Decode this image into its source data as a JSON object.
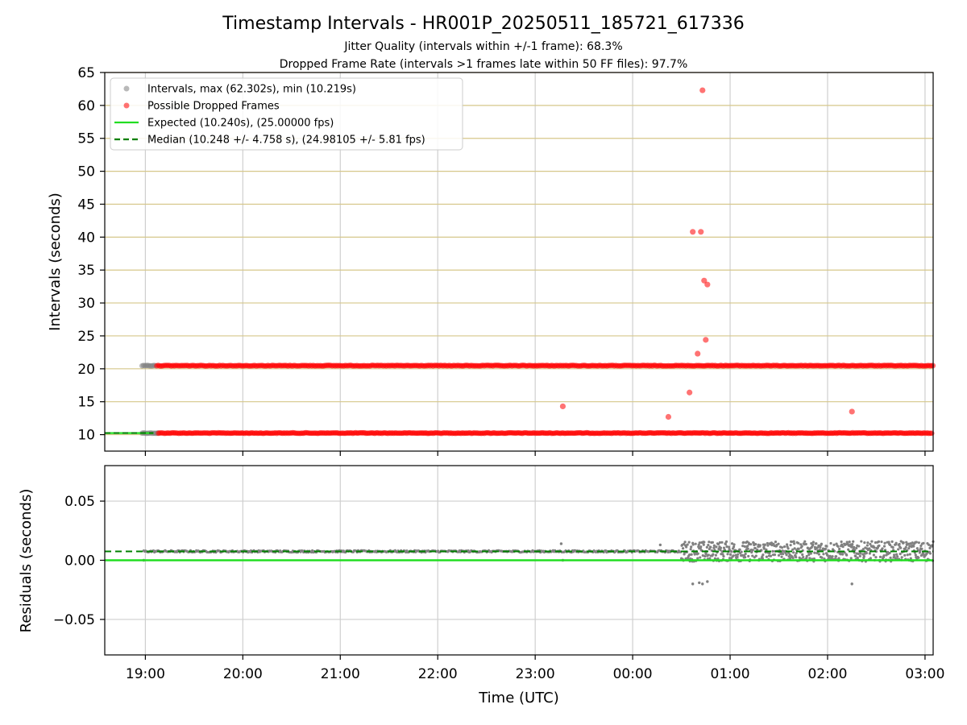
{
  "chart_data": [
    {
      "type": "scatter",
      "panel": "intervals",
      "title": "Timestamp Intervals - HR001P_20250511_185721_617336",
      "subtitle_lines": [
        "Jitter Quality (intervals within +/-1 frame): 68.3%",
        "Dropped Frame Rate (intervals >1 frames late within 50 FF files): 97.7%"
      ],
      "xlabel": "",
      "ylabel": "Intervals (seconds)",
      "ylim": [
        7.5,
        65
      ],
      "yticks": [
        10,
        15,
        20,
        25,
        30,
        35,
        40,
        45,
        50,
        55,
        60,
        65
      ],
      "xlim": [
        "18:35",
        "03:05"
      ],
      "grid": true,
      "legend_position": "top-left",
      "legend": [
        {
          "label": "Intervals, max (62.302s), min (10.219s)",
          "kind": "marker",
          "color": "#808080"
        },
        {
          "label": "Possible Dropped Frames",
          "kind": "marker",
          "color": "#ff0000"
        },
        {
          "label": "Expected (10.240s), (25.00000 fps)",
          "kind": "line",
          "color": "#22dd22"
        },
        {
          "label": "Median (10.248 +/- 4.758 s), (24.98105 +/- 5.81 fps)",
          "kind": "dashed",
          "color": "#008000"
        }
      ],
      "expected_interval": 10.24,
      "median_interval": 10.248,
      "series": [
        {
          "name": "Intervals, max (62.302s), min (10.219s)",
          "color": "#808080",
          "bands": [
            {
              "value": 10.24,
              "x_start": "18:58",
              "x_end": "19:08"
            },
            {
              "value": 20.48,
              "x_start": "18:58",
              "x_end": "19:07"
            }
          ]
        },
        {
          "name": "Possible Dropped Frames",
          "color": "#ff0000",
          "bands": [
            {
              "value": 10.24,
              "x_start": "19:08",
              "x_end": "03:05"
            },
            {
              "value": 20.48,
              "x_start": "19:07",
              "x_end": "03:05"
            }
          ],
          "points": [
            {
              "x": "23:17",
              "y": 14.3
            },
            {
              "x": "00:22",
              "y": 12.7
            },
            {
              "x": "00:35",
              "y": 16.4
            },
            {
              "x": "00:37",
              "y": 40.8
            },
            {
              "x": "00:40",
              "y": 22.3
            },
            {
              "x": "00:42",
              "y": 40.8
            },
            {
              "x": "00:43",
              "y": 62.3
            },
            {
              "x": "00:44",
              "y": 33.4
            },
            {
              "x": "00:45",
              "y": 24.4
            },
            {
              "x": "00:46",
              "y": 32.8
            },
            {
              "x": "02:15",
              "y": 13.5
            }
          ]
        }
      ]
    },
    {
      "type": "scatter",
      "panel": "residuals",
      "xlabel": "Time (UTC)",
      "ylabel": "Residuals (seconds)",
      "ylim": [
        -0.08,
        0.08
      ],
      "yticks": [
        -0.05,
        0.0,
        0.05
      ],
      "ytick_labels": [
        "−0.05",
        "0.00",
        "0.05"
      ],
      "xlim": [
        "18:35",
        "03:05"
      ],
      "xticks": [
        "19:00",
        "20:00",
        "21:00",
        "22:00",
        "23:00",
        "00:00",
        "01:00",
        "02:00",
        "03:00"
      ],
      "grid": true,
      "expected_residual": 0.0,
      "median_residual": 0.0075,
      "series": [
        {
          "name": "Residuals",
          "color": "#808080",
          "segments": [
            {
              "x_start": "18:59",
              "x_end": "00:30",
              "center": 0.0075,
              "spread": 0.0008
            },
            {
              "x_start": "00:30",
              "x_end": "03:05",
              "center": 0.0075,
              "spread": 0.0085
            }
          ],
          "points": [
            {
              "x": "18:59",
              "y": 0.0
            },
            {
              "x": "23:17",
              "y": 0.0
            },
            {
              "x": "23:16",
              "y": 0.014
            },
            {
              "x": "00:17",
              "y": 0.013
            },
            {
              "x": "00:37",
              "y": -0.02
            },
            {
              "x": "00:41",
              "y": -0.019
            },
            {
              "x": "00:43",
              "y": -0.02
            },
            {
              "x": "00:46",
              "y": -0.018
            },
            {
              "x": "02:15",
              "y": -0.02
            }
          ]
        }
      ]
    }
  ]
}
